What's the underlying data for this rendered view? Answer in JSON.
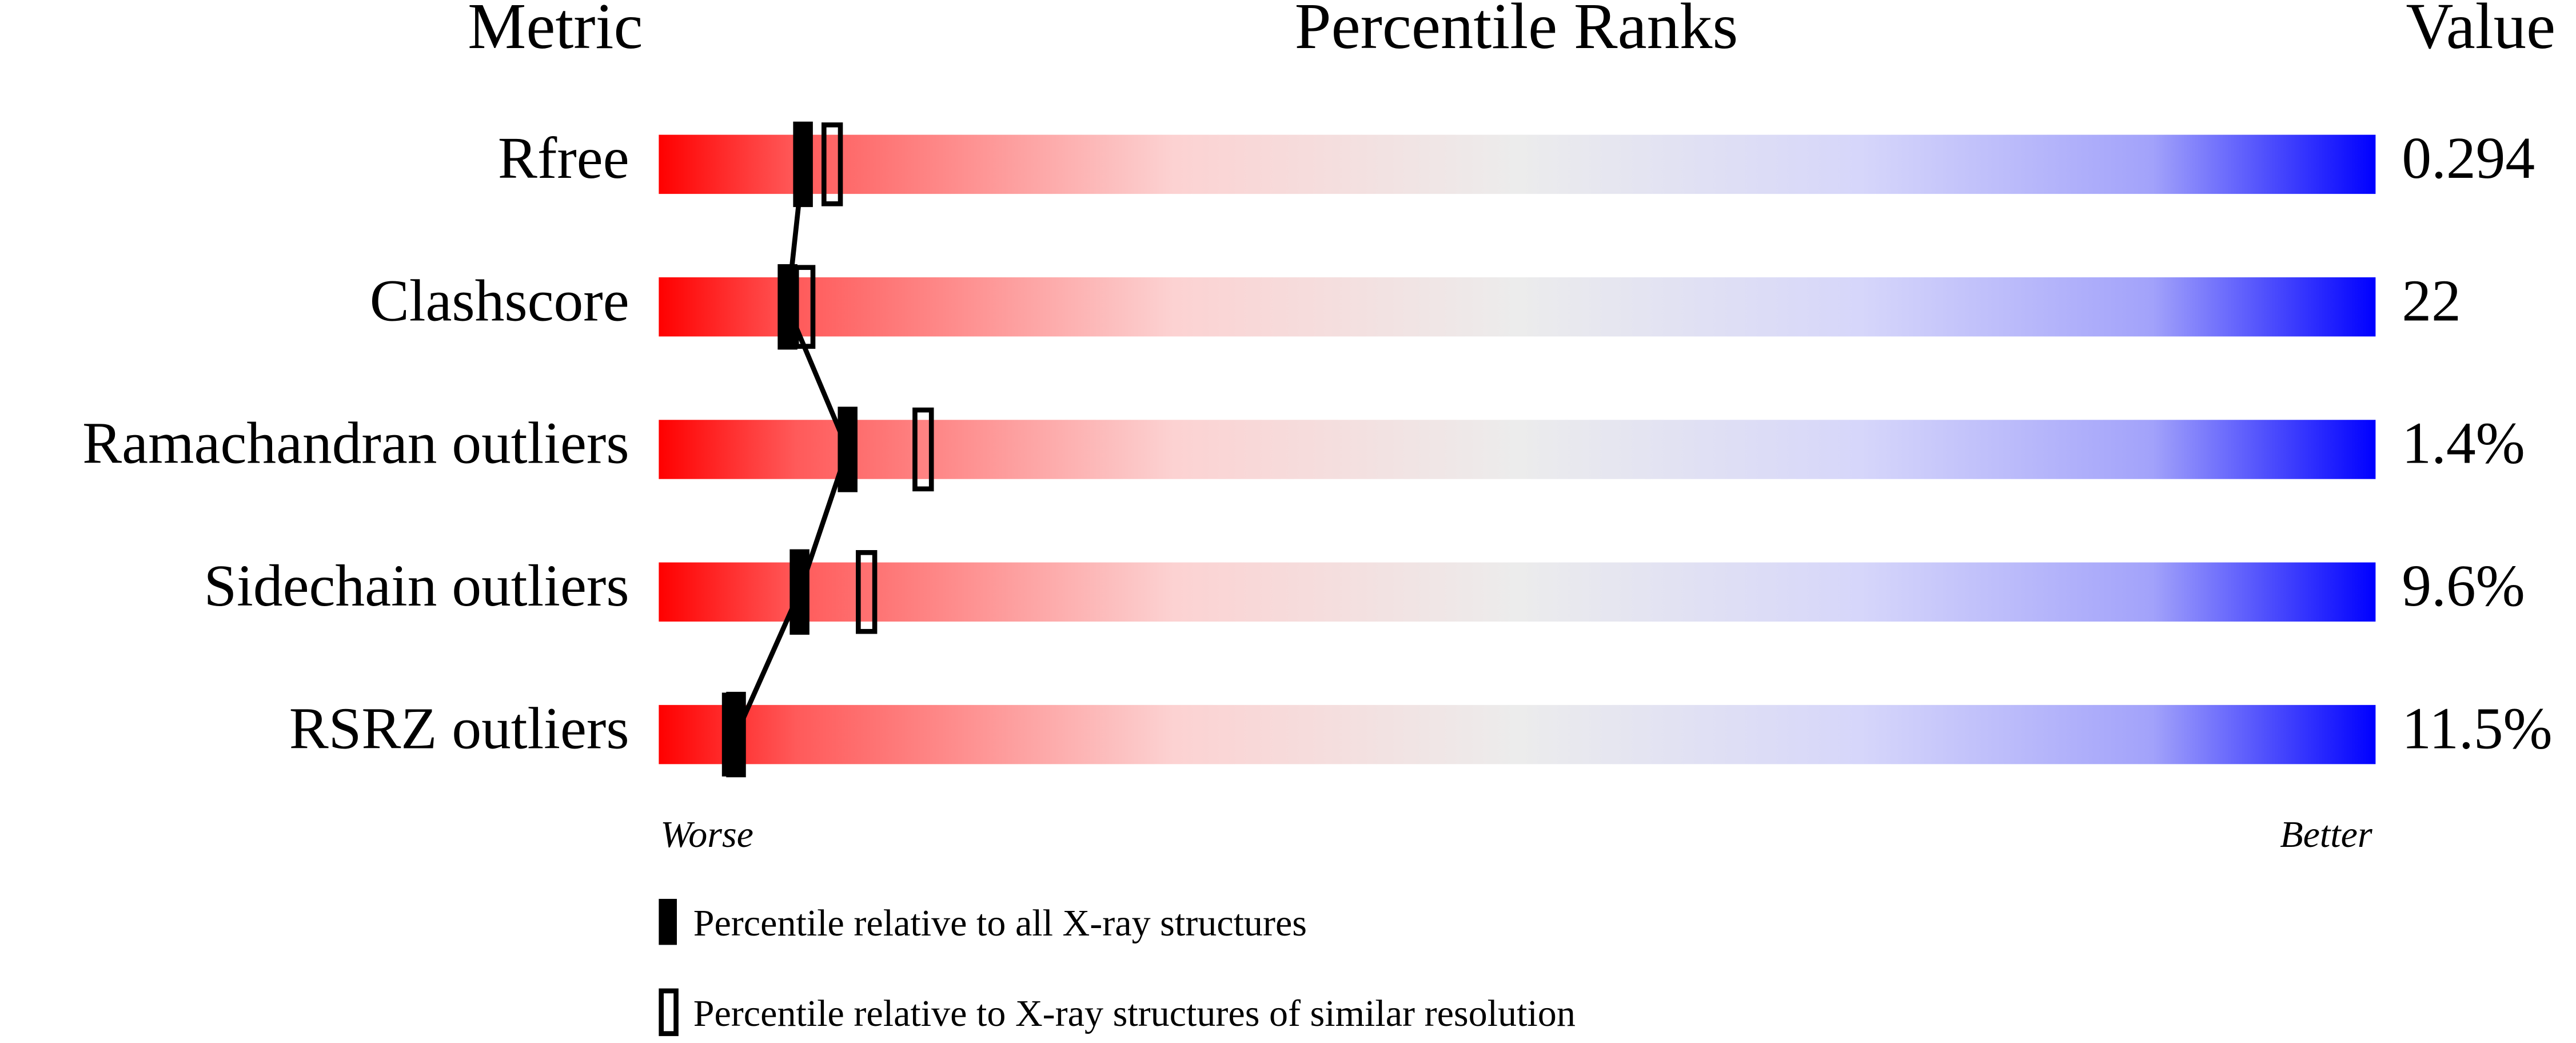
{
  "chart_data": {
    "type": "percentile",
    "headers": [
      "Metric",
      "Percentile Ranks",
      "Value"
    ],
    "categories": [
      "Rfree",
      "Clashscore",
      "Ramachandran outliers",
      "Sidechain outliers",
      "RSRZ outliers"
    ],
    "metric_values": [
      "0.294",
      "22",
      "1.4%",
      "9.6%",
      "11.5%"
    ],
    "series": [
      {
        "name": "Percentile relative to all X-ray structures",
        "color": "#000000",
        "values": [
          8.4,
          7.5,
          11,
          8.2,
          4.5
        ]
      },
      {
        "name": "Percentile relative to X-ray structures of similar resolution",
        "color": "#000000",
        "values": [
          10.1,
          8.5,
          15.4,
          12.1,
          4.3
        ]
      }
    ],
    "xlim": [
      0,
      100
    ],
    "x_axis_labels": [
      "Worse",
      "Better"
    ]
  }
}
